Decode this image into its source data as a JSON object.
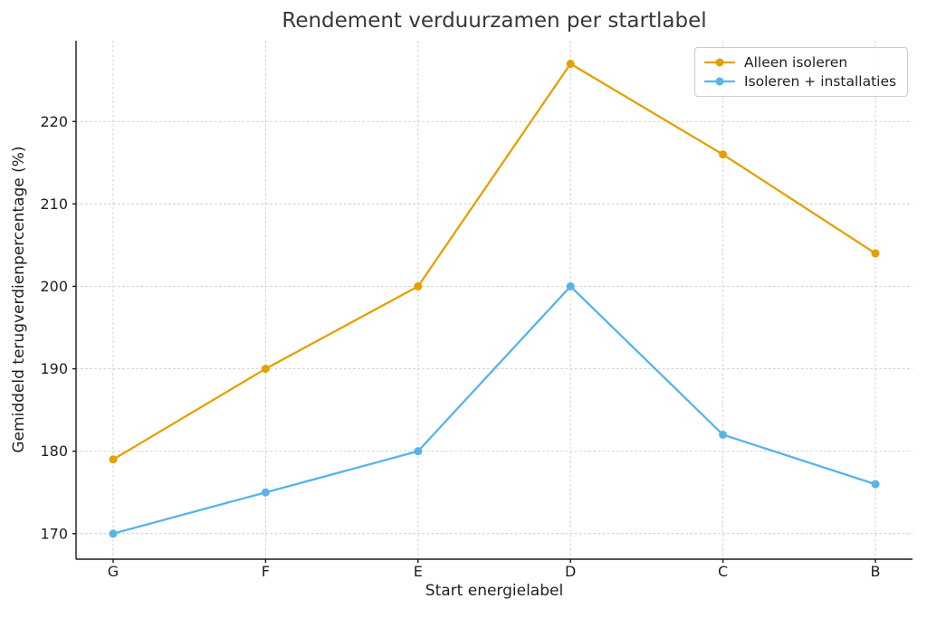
{
  "title": "Rendement verduurzamen per startlabel",
  "chart_data": {
    "type": "line",
    "title": "Rendement verduurzamen per startlabel",
    "xlabel": "Start energielabel",
    "ylabel": "Gemiddeld terugverdienpercentage (%)",
    "categories": [
      "G",
      "F",
      "E",
      "D",
      "C",
      "B"
    ],
    "series": [
      {
        "name": "Alleen isoleren",
        "color": "#E69F00",
        "values": [
          179,
          190,
          200,
          227,
          216,
          204
        ]
      },
      {
        "name": "Isoleren + installaties",
        "color": "#56B4E9",
        "values": [
          170,
          175,
          180,
          200,
          182,
          176
        ]
      }
    ],
    "yticks": [
      170,
      180,
      190,
      200,
      210,
      220
    ],
    "ylim": [
      166.9,
      229.8
    ],
    "grid": true,
    "grid_style": "dashed",
    "legend_position": "upper right",
    "marker": "circle"
  },
  "style_colors": {
    "grid": "#cccccc",
    "spine": "#1a1a1a",
    "tick_label": "#1f1f1f"
  }
}
